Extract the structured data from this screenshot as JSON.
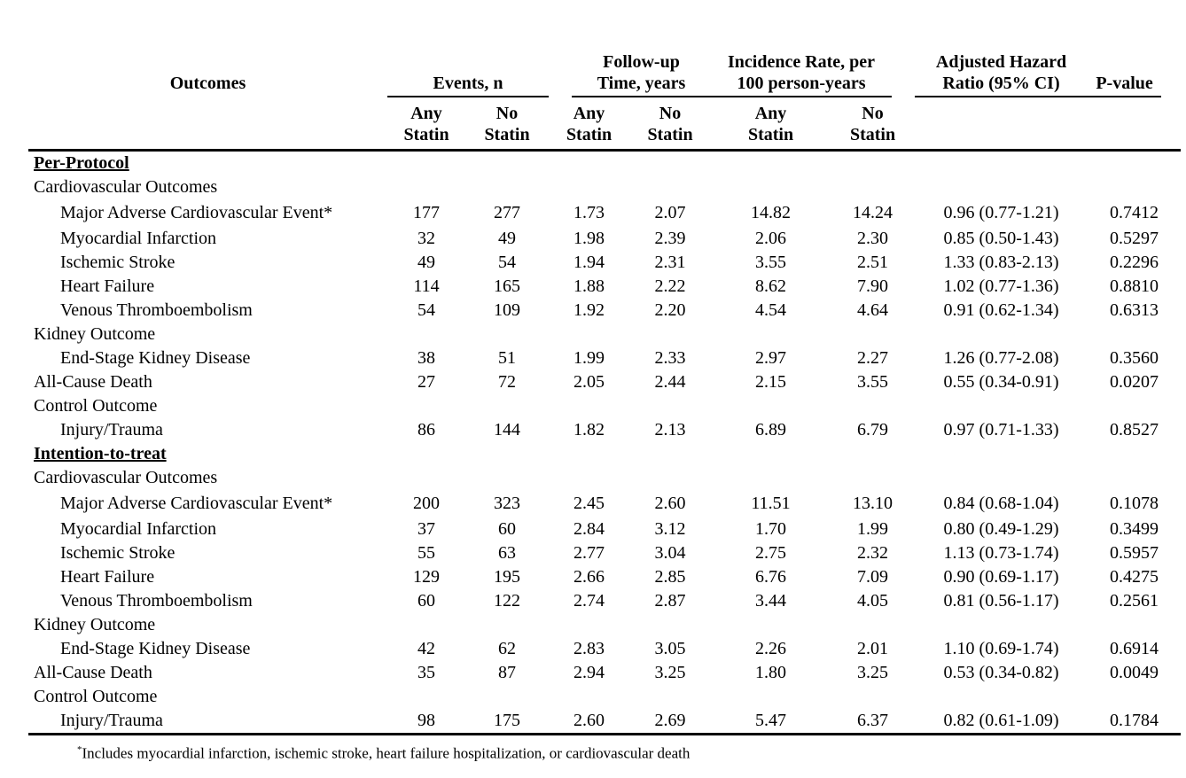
{
  "header": {
    "outcomes": "Outcomes",
    "events_group": "Events, n",
    "followup_line1": "Follow-up",
    "followup_line2": "Time, years",
    "incidence_line1": "Incidence Rate, per",
    "incidence_line2": "100 person-years",
    "ahr_line1": "Adjusted Hazard",
    "ahr_line2": "Ratio (95% CI)",
    "pvalue": "P-value",
    "any": "Any",
    "no": "No",
    "statin": "Statin"
  },
  "column_keys": [
    "events-any-statin",
    "events-no-statin",
    "followup-any-statin",
    "followup-no-statin",
    "incidence-any-statin",
    "incidence-no-statin",
    "adjusted-hazard-ratio",
    "p-value"
  ],
  "rows": [
    {
      "type": "section",
      "label": "Per-Protocol"
    },
    {
      "type": "group",
      "label": "Cardiovascular Outcomes"
    },
    {
      "type": "outcome",
      "indent": 1,
      "tall": true,
      "label": "Major Adverse Cardiovascular Event*",
      "values": [
        "177",
        "277",
        "1.73",
        "2.07",
        "14.82",
        "14.24",
        "0.96 (0.77-1.21)",
        "0.7412"
      ]
    },
    {
      "type": "outcome",
      "indent": 1,
      "label": "Myocardial Infarction",
      "values": [
        "32",
        "49",
        "1.98",
        "2.39",
        "2.06",
        "2.30",
        "0.85 (0.50-1.43)",
        "0.5297"
      ]
    },
    {
      "type": "outcome",
      "indent": 1,
      "label": "Ischemic Stroke",
      "values": [
        "49",
        "54",
        "1.94",
        "2.31",
        "3.55",
        "2.51",
        "1.33 (0.83-2.13)",
        "0.2296"
      ]
    },
    {
      "type": "outcome",
      "indent": 1,
      "label": "Heart Failure",
      "values": [
        "114",
        "165",
        "1.88",
        "2.22",
        "8.62",
        "7.90",
        "1.02 (0.77-1.36)",
        "0.8810"
      ]
    },
    {
      "type": "outcome",
      "indent": 1,
      "label": "Venous Thromboembolism",
      "values": [
        "54",
        "109",
        "1.92",
        "2.20",
        "4.54",
        "4.64",
        "0.91 (0.62-1.34)",
        "0.6313"
      ]
    },
    {
      "type": "group",
      "label": "Kidney Outcome"
    },
    {
      "type": "outcome",
      "indent": 1,
      "label": "End-Stage Kidney Disease",
      "values": [
        "38",
        "51",
        "1.99",
        "2.33",
        "2.97",
        "2.27",
        "1.26 (0.77-2.08)",
        "0.3560"
      ]
    },
    {
      "type": "outcome",
      "indent": 0,
      "label": "All-Cause Death",
      "values": [
        "27",
        "72",
        "2.05",
        "2.44",
        "2.15",
        "3.55",
        "0.55 (0.34-0.91)",
        "0.0207"
      ]
    },
    {
      "type": "group",
      "label": "Control Outcome"
    },
    {
      "type": "outcome",
      "indent": 1,
      "label": "Injury/Trauma",
      "values": [
        "86",
        "144",
        "1.82",
        "2.13",
        "6.89",
        "6.79",
        "0.97 (0.71-1.33)",
        "0.8527"
      ]
    },
    {
      "type": "section",
      "label": "Intention-to-treat"
    },
    {
      "type": "group",
      "label": "Cardiovascular Outcomes"
    },
    {
      "type": "outcome",
      "indent": 1,
      "tall": true,
      "label": "Major Adverse Cardiovascular Event*",
      "values": [
        "200",
        "323",
        "2.45",
        "2.60",
        "11.51",
        "13.10",
        "0.84 (0.68-1.04)",
        "0.1078"
      ]
    },
    {
      "type": "outcome",
      "indent": 1,
      "label": "Myocardial Infarction",
      "values": [
        "37",
        "60",
        "2.84",
        "3.12",
        "1.70",
        "1.99",
        "0.80 (0.49-1.29)",
        "0.3499"
      ]
    },
    {
      "type": "outcome",
      "indent": 1,
      "label": "Ischemic Stroke",
      "values": [
        "55",
        "63",
        "2.77",
        "3.04",
        "2.75",
        "2.32",
        "1.13 (0.73-1.74)",
        "0.5957"
      ]
    },
    {
      "type": "outcome",
      "indent": 1,
      "label": "Heart Failure",
      "values": [
        "129",
        "195",
        "2.66",
        "2.85",
        "6.76",
        "7.09",
        "0.90 (0.69-1.17)",
        "0.4275"
      ]
    },
    {
      "type": "outcome",
      "indent": 1,
      "label": "Venous Thromboembolism",
      "values": [
        "60",
        "122",
        "2.74",
        "2.87",
        "3.44",
        "4.05",
        "0.81 (0.56-1.17)",
        "0.2561"
      ]
    },
    {
      "type": "group",
      "label": "Kidney Outcome"
    },
    {
      "type": "outcome",
      "indent": 1,
      "label": "End-Stage Kidney Disease",
      "values": [
        "42",
        "62",
        "2.83",
        "3.05",
        "2.26",
        "2.01",
        "1.10 (0.69-1.74)",
        "0.6914"
      ]
    },
    {
      "type": "outcome",
      "indent": 0,
      "label": "All-Cause Death",
      "values": [
        "35",
        "87",
        "2.94",
        "3.25",
        "1.80",
        "3.25",
        "0.53 (0.34-0.82)",
        "0.0049"
      ]
    },
    {
      "type": "group",
      "label": "Control Outcome"
    },
    {
      "type": "outcome",
      "indent": 1,
      "label": "Injury/Trauma",
      "values": [
        "98",
        "175",
        "2.60",
        "2.69",
        "5.47",
        "6.37",
        "0.82 (0.61-1.09)",
        "0.1784"
      ]
    }
  ],
  "footnote": {
    "marker": "*",
    "text": "Includes myocardial infarction, ischemic stroke, heart failure hospitalization, or cardiovascular death"
  },
  "colors": {
    "background": "#ffffff",
    "text": "#000000",
    "rule": "#000000"
  }
}
